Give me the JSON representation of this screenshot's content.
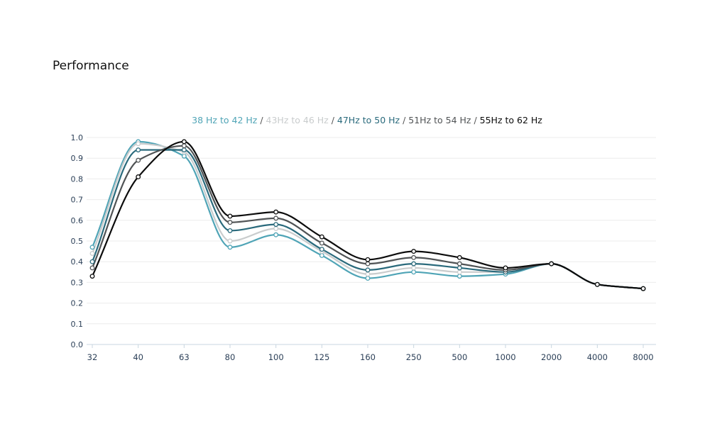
{
  "header": {
    "title": "Performance"
  },
  "legend": [
    {
      "label": "38 Hz to 42 Hz",
      "color": "#4fa4b6"
    },
    {
      "label": "43Hz to 46 Hz",
      "color": "#c9cccd"
    },
    {
      "label": "47Hz to 50 Hz",
      "color": "#2a6a7c"
    },
    {
      "label": "51Hz to 54 Hz",
      "color": "#505355"
    },
    {
      "label": "55Hz to 62 Hz",
      "color": "#0c0c0c"
    }
  ],
  "legend_separator": " / ",
  "chart_data": {
    "type": "line",
    "title": "",
    "xlabel": "",
    "ylabel": "",
    "categories": [
      "32",
      "40",
      "63",
      "80",
      "100",
      "125",
      "160",
      "250",
      "500",
      "1000",
      "2000",
      "4000",
      "8000"
    ],
    "ylim": [
      0,
      1.0
    ],
    "y_ticks": [
      "0.0",
      "0.1",
      "0.2",
      "0.3",
      "0.4",
      "0.5",
      "0.6",
      "0.7",
      "0.8",
      "0.9",
      "1.0"
    ],
    "grid": true,
    "series": [
      {
        "name": "38 Hz to 42 Hz",
        "color": "#4fa4b6",
        "values": [
          0.47,
          0.98,
          0.91,
          0.47,
          0.53,
          0.43,
          0.32,
          0.35,
          0.33,
          0.34,
          0.39,
          0.29,
          0.27
        ]
      },
      {
        "name": "43Hz to 46 Hz",
        "color": "#c9cccd",
        "values": [
          0.44,
          0.97,
          0.93,
          0.5,
          0.56,
          0.45,
          0.34,
          0.37,
          0.35,
          0.35,
          0.39,
          0.29,
          0.27
        ]
      },
      {
        "name": "47Hz to 50 Hz",
        "color": "#2a6a7c",
        "values": [
          0.4,
          0.94,
          0.94,
          0.55,
          0.58,
          0.46,
          0.36,
          0.39,
          0.37,
          0.35,
          0.39,
          0.29,
          0.27
        ]
      },
      {
        "name": "51Hz to 54 Hz",
        "color": "#505355",
        "values": [
          0.37,
          0.89,
          0.96,
          0.59,
          0.61,
          0.49,
          0.39,
          0.42,
          0.39,
          0.36,
          0.39,
          0.29,
          0.27
        ]
      },
      {
        "name": "55Hz to 62 Hz",
        "color": "#0c0c0c",
        "values": [
          0.33,
          0.81,
          0.98,
          0.62,
          0.64,
          0.52,
          0.41,
          0.45,
          0.42,
          0.37,
          0.39,
          0.29,
          0.27
        ]
      }
    ]
  }
}
